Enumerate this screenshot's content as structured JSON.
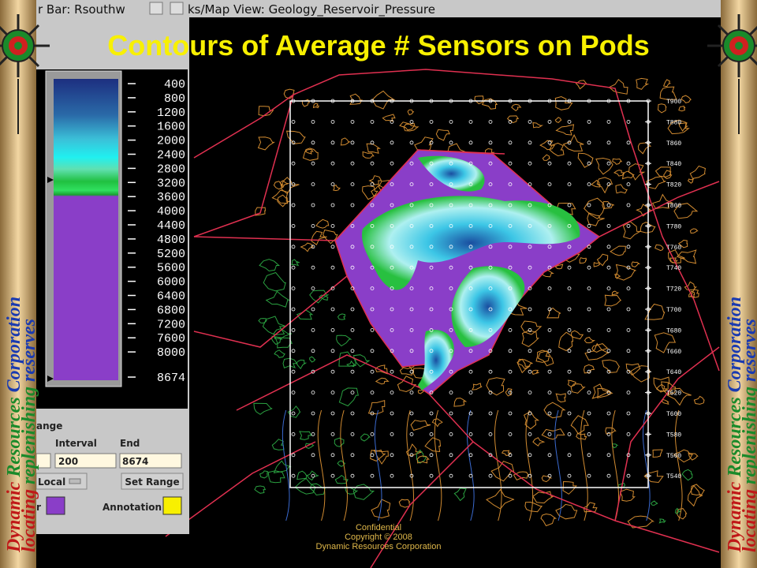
{
  "window": {
    "title_left": "r Bar: Rsouthw",
    "title_right": "ks/Map View: Geology_Reservoir_Pressure"
  },
  "title": "Contours of Average # Sensors on Pods",
  "colorbar": {
    "ticks": [
      400,
      800,
      1200,
      1600,
      2000,
      2400,
      2800,
      3200,
      3600,
      4000,
      4400,
      4800,
      5200,
      5600,
      6000,
      6400,
      6800,
      7200,
      7600,
      8000,
      8674
    ]
  },
  "panel": {
    "range_label": "ange",
    "interval_label": "Interval",
    "end_label": "End",
    "interval_value": "200",
    "end_value": "8674",
    "local_button": "Local",
    "set_range_button": "Set Range",
    "color_label": "r",
    "annotation_label": "Annotation"
  },
  "map": {
    "row_labels": [
      "T900",
      "T880",
      "T860",
      "T840",
      "T820",
      "T800",
      "T780",
      "T760",
      "T740",
      "T720",
      "T700",
      "T680",
      "T660",
      "T640",
      "T620",
      "T600",
      "T580",
      "T560",
      "T540"
    ]
  },
  "banner": {
    "company": [
      "Dynamic",
      "Resources",
      "Corporation"
    ],
    "tagline": [
      "locating",
      "replenishing",
      "reserves"
    ]
  },
  "footer": {
    "line1": "Confidential",
    "line2": "Copyright © 2008",
    "line3": "Dynamic Resources Corporation"
  }
}
